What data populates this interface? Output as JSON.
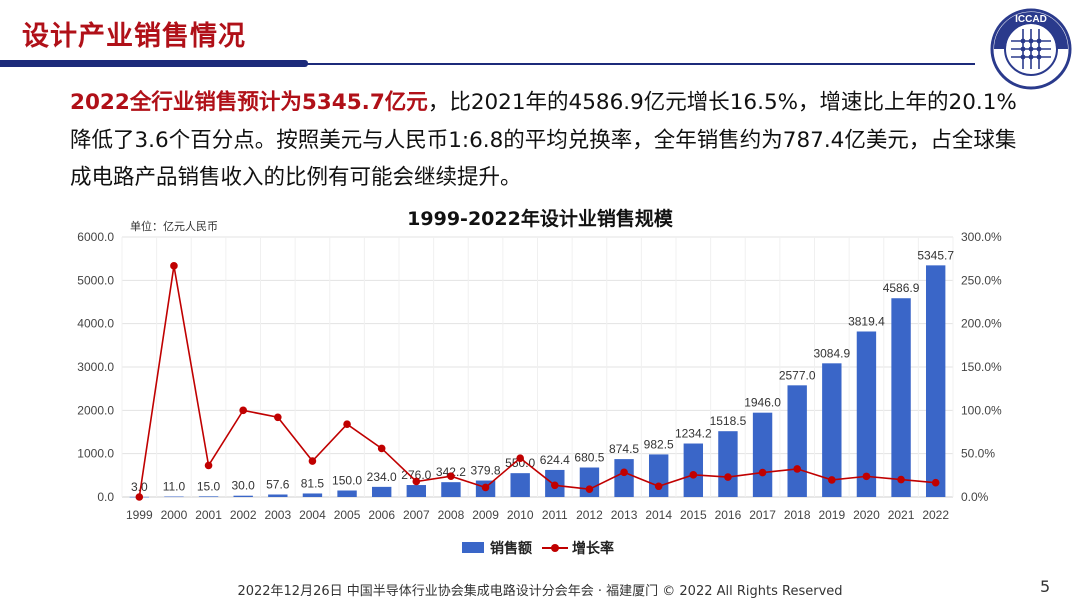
{
  "header": {
    "title": "设计产业销售情况",
    "logo_text": "ICCAD"
  },
  "paragraph": {
    "highlight": "2022全行业销售预计为5345.7亿元",
    "rest": "，比2021年的4586.9亿元增长16.5%，增速比上年的20.1%降低了3.6个百分点。按照美元与人民币1:6.8的平均兑换率，全年销售约为787.4亿美元，占全球集成电路产品销售收入的比例有可能会继续提升。"
  },
  "chart_data": {
    "type": "bar+line",
    "title": "1999-2022年设计业销售规模",
    "unit_label": "单位：亿元人民币",
    "categories": [
      "1999",
      "2000",
      "2001",
      "2002",
      "2003",
      "2004",
      "2005",
      "2006",
      "2007",
      "2008",
      "2009",
      "2010",
      "2011",
      "2012",
      "2013",
      "2014",
      "2015",
      "2016",
      "2017",
      "2018",
      "2019",
      "2020",
      "2021",
      "2022"
    ],
    "series": [
      {
        "name": "销售额",
        "type": "bar",
        "axis": "left",
        "color": "#3a66c8",
        "values": [
          3.0,
          11.0,
          15.0,
          30.0,
          57.6,
          81.5,
          150.0,
          234.0,
          276.0,
          342.2,
          379.8,
          550.0,
          624.4,
          680.5,
          874.5,
          982.5,
          1234.2,
          1518.5,
          1946.0,
          2577.0,
          3084.9,
          3819.4,
          4586.9,
          5345.7
        ],
        "labels": [
          "3.0",
          "11.0",
          "15.0",
          "30.0",
          "57.6",
          "81.5",
          "150.0",
          "234.0",
          "276.0",
          "342.2",
          "379.8",
          "550.0",
          "624.4",
          "680.5",
          "874.5",
          "982.5",
          "1234.2",
          "1518.5",
          "1946.0",
          "2577.0",
          "3084.9",
          "3819.4",
          "4586.9",
          "5345.7"
        ]
      },
      {
        "name": "增长率",
        "type": "line",
        "axis": "right",
        "color": "#c00000",
        "values": [
          0,
          266.7,
          36.4,
          100.0,
          92.0,
          41.5,
          84.0,
          56.0,
          17.9,
          24.0,
          11.0,
          44.8,
          13.5,
          9.0,
          28.5,
          12.4,
          25.6,
          23.0,
          28.2,
          32.4,
          19.7,
          23.8,
          20.1,
          16.5
        ]
      }
    ],
    "y_left": {
      "ylim": [
        0,
        6000
      ],
      "ticks": [
        "0.0",
        "1000.0",
        "2000.0",
        "3000.0",
        "4000.0",
        "5000.0",
        "6000.0"
      ]
    },
    "y_right": {
      "ylim": [
        0,
        300
      ],
      "ticks": [
        "0.0%",
        "50.0%",
        "100.0%",
        "150.0%",
        "200.0%",
        "250.0%",
        "300.0%"
      ]
    },
    "grid": true,
    "legend": "bottom"
  },
  "footer": {
    "text": "2022年12月26日 中国半导体行业协会集成电路设计分会年会 · 福建厦门 © 2022 All Rights Reserved",
    "page": "5"
  }
}
